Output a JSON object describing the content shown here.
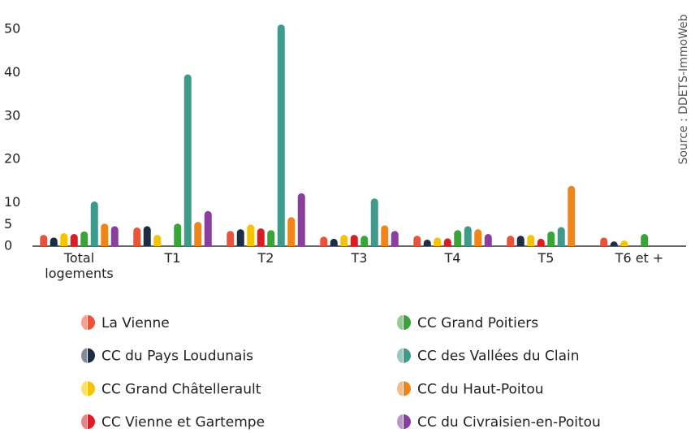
{
  "chart_data": {
    "type": "bar",
    "source": "Source : DDETS-ImmoWeb",
    "categories": [
      "Total logements",
      "T1",
      "T2",
      "T3",
      "T4",
      "T5",
      "T6 et +"
    ],
    "series": [
      {
        "name": "La Vienne",
        "color": "#e8533a",
        "values": [
          2.6,
          4.3,
          3.5,
          2.2,
          2.4,
          2.4,
          2.0
        ]
      },
      {
        "name": "CC du Pays Loudunais",
        "color": "#1d2d44",
        "values": [
          2.0,
          4.6,
          3.9,
          1.7,
          1.5,
          2.4,
          1.1
        ]
      },
      {
        "name": "CC Grand Châtellerault",
        "color": "#f5c400",
        "values": [
          3.0,
          2.6,
          5.0,
          2.6,
          2.0,
          2.6,
          1.3
        ]
      },
      {
        "name": "CC Vienne et Gartempe",
        "color": "#d81e24",
        "values": [
          2.8,
          null,
          4.1,
          2.6,
          1.8,
          1.7,
          null
        ]
      },
      {
        "name": "CC Grand Poitiers",
        "color": "#3aa33a",
        "values": [
          3.4,
          5.2,
          3.7,
          2.4,
          3.7,
          3.4,
          2.8
        ]
      },
      {
        "name": "CC des Vallées du Clain",
        "color": "#3e9a8a",
        "values": [
          10.3,
          39.6,
          51.1,
          11.0,
          4.6,
          4.4,
          null
        ]
      },
      {
        "name": "CC du Haut-Poitou",
        "color": "#f08519",
        "values": [
          5.2,
          5.6,
          6.7,
          4.8,
          3.9,
          13.9,
          null
        ]
      },
      {
        "name": "CC du Civraisien-en-Poitou",
        "color": "#8a3f9e",
        "values": [
          4.6,
          8.1,
          12.2,
          3.5,
          2.8,
          null,
          null
        ]
      }
    ],
    "ylim": [
      0,
      50
    ],
    "yticks": [
      0,
      5,
      10,
      20,
      30,
      40,
      50
    ],
    "grid": false
  }
}
